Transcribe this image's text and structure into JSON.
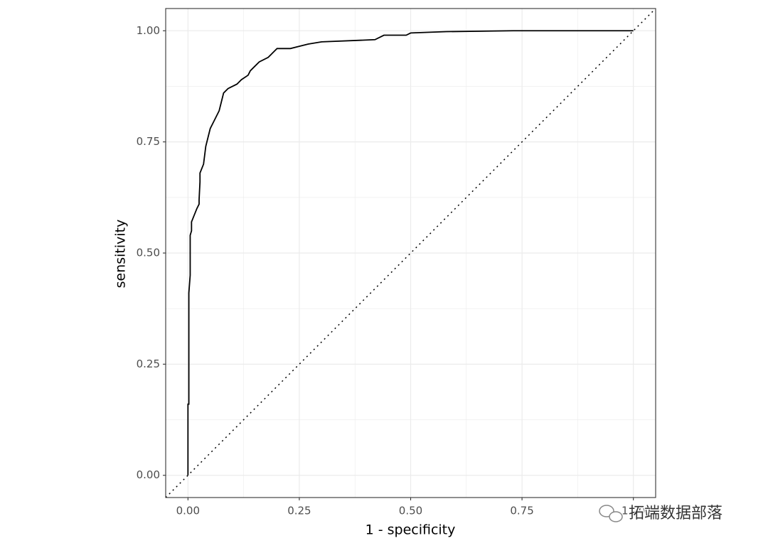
{
  "chart_data": {
    "type": "line",
    "xlabel": "1 - specificity",
    "ylabel": "sensitivity",
    "x": [
      0,
      0,
      0.002,
      0.002,
      0.005,
      0.005,
      0.008,
      0.008,
      0.012,
      0.02,
      0.025,
      0.025,
      0.027,
      0.027,
      0.035,
      0.04,
      0.045,
      0.05,
      0.06,
      0.07,
      0.075,
      0.08,
      0.09,
      0.11,
      0.12,
      0.135,
      0.14,
      0.15,
      0.16,
      0.18,
      0.19,
      0.2,
      0.23,
      0.25,
      0.27,
      0.3,
      0.42,
      0.44,
      0.49,
      0.5,
      0.58,
      0.73,
      1.0
    ],
    "series": [
      {
        "color": "#000000",
        "values": [
          0,
          0.16,
          0.16,
          0.41,
          0.45,
          0.54,
          0.55,
          0.57,
          0.58,
          0.6,
          0.61,
          0.62,
          0.66,
          0.68,
          0.7,
          0.74,
          0.76,
          0.78,
          0.8,
          0.82,
          0.84,
          0.86,
          0.87,
          0.88,
          0.89,
          0.9,
          0.91,
          0.92,
          0.93,
          0.94,
          0.95,
          0.96,
          0.96,
          0.965,
          0.97,
          0.975,
          0.98,
          0.99,
          0.99,
          0.995,
          0.998,
          1.0,
          1.0
        ]
      }
    ],
    "reference_line": {
      "intercept": 0,
      "slope": 1,
      "color": "#000000",
      "style": "dotted"
    },
    "xlim": [
      -0.05,
      1.05
    ],
    "ylim": [
      -0.05,
      1.05
    ],
    "xticks": [
      {
        "value": 0,
        "label": "0.00"
      },
      {
        "value": 0.25,
        "label": "0.25"
      },
      {
        "value": 0.5,
        "label": "0.50"
      },
      {
        "value": 0.75,
        "label": "0.75"
      },
      {
        "value": 1,
        "label": "1.00"
      }
    ],
    "yticks": [
      {
        "value": 0,
        "label": "0.00"
      },
      {
        "value": 0.25,
        "label": "0.25"
      },
      {
        "value": 0.5,
        "label": "0.50"
      },
      {
        "value": 0.75,
        "label": "0.75"
      },
      {
        "value": 1,
        "label": "1.00"
      }
    ],
    "xminor": [
      0.125,
      0.375,
      0.625,
      0.875
    ],
    "yminor": [
      0.125,
      0.375,
      0.625,
      0.875
    ],
    "grid": true,
    "watermark": "拓端数据部落"
  }
}
